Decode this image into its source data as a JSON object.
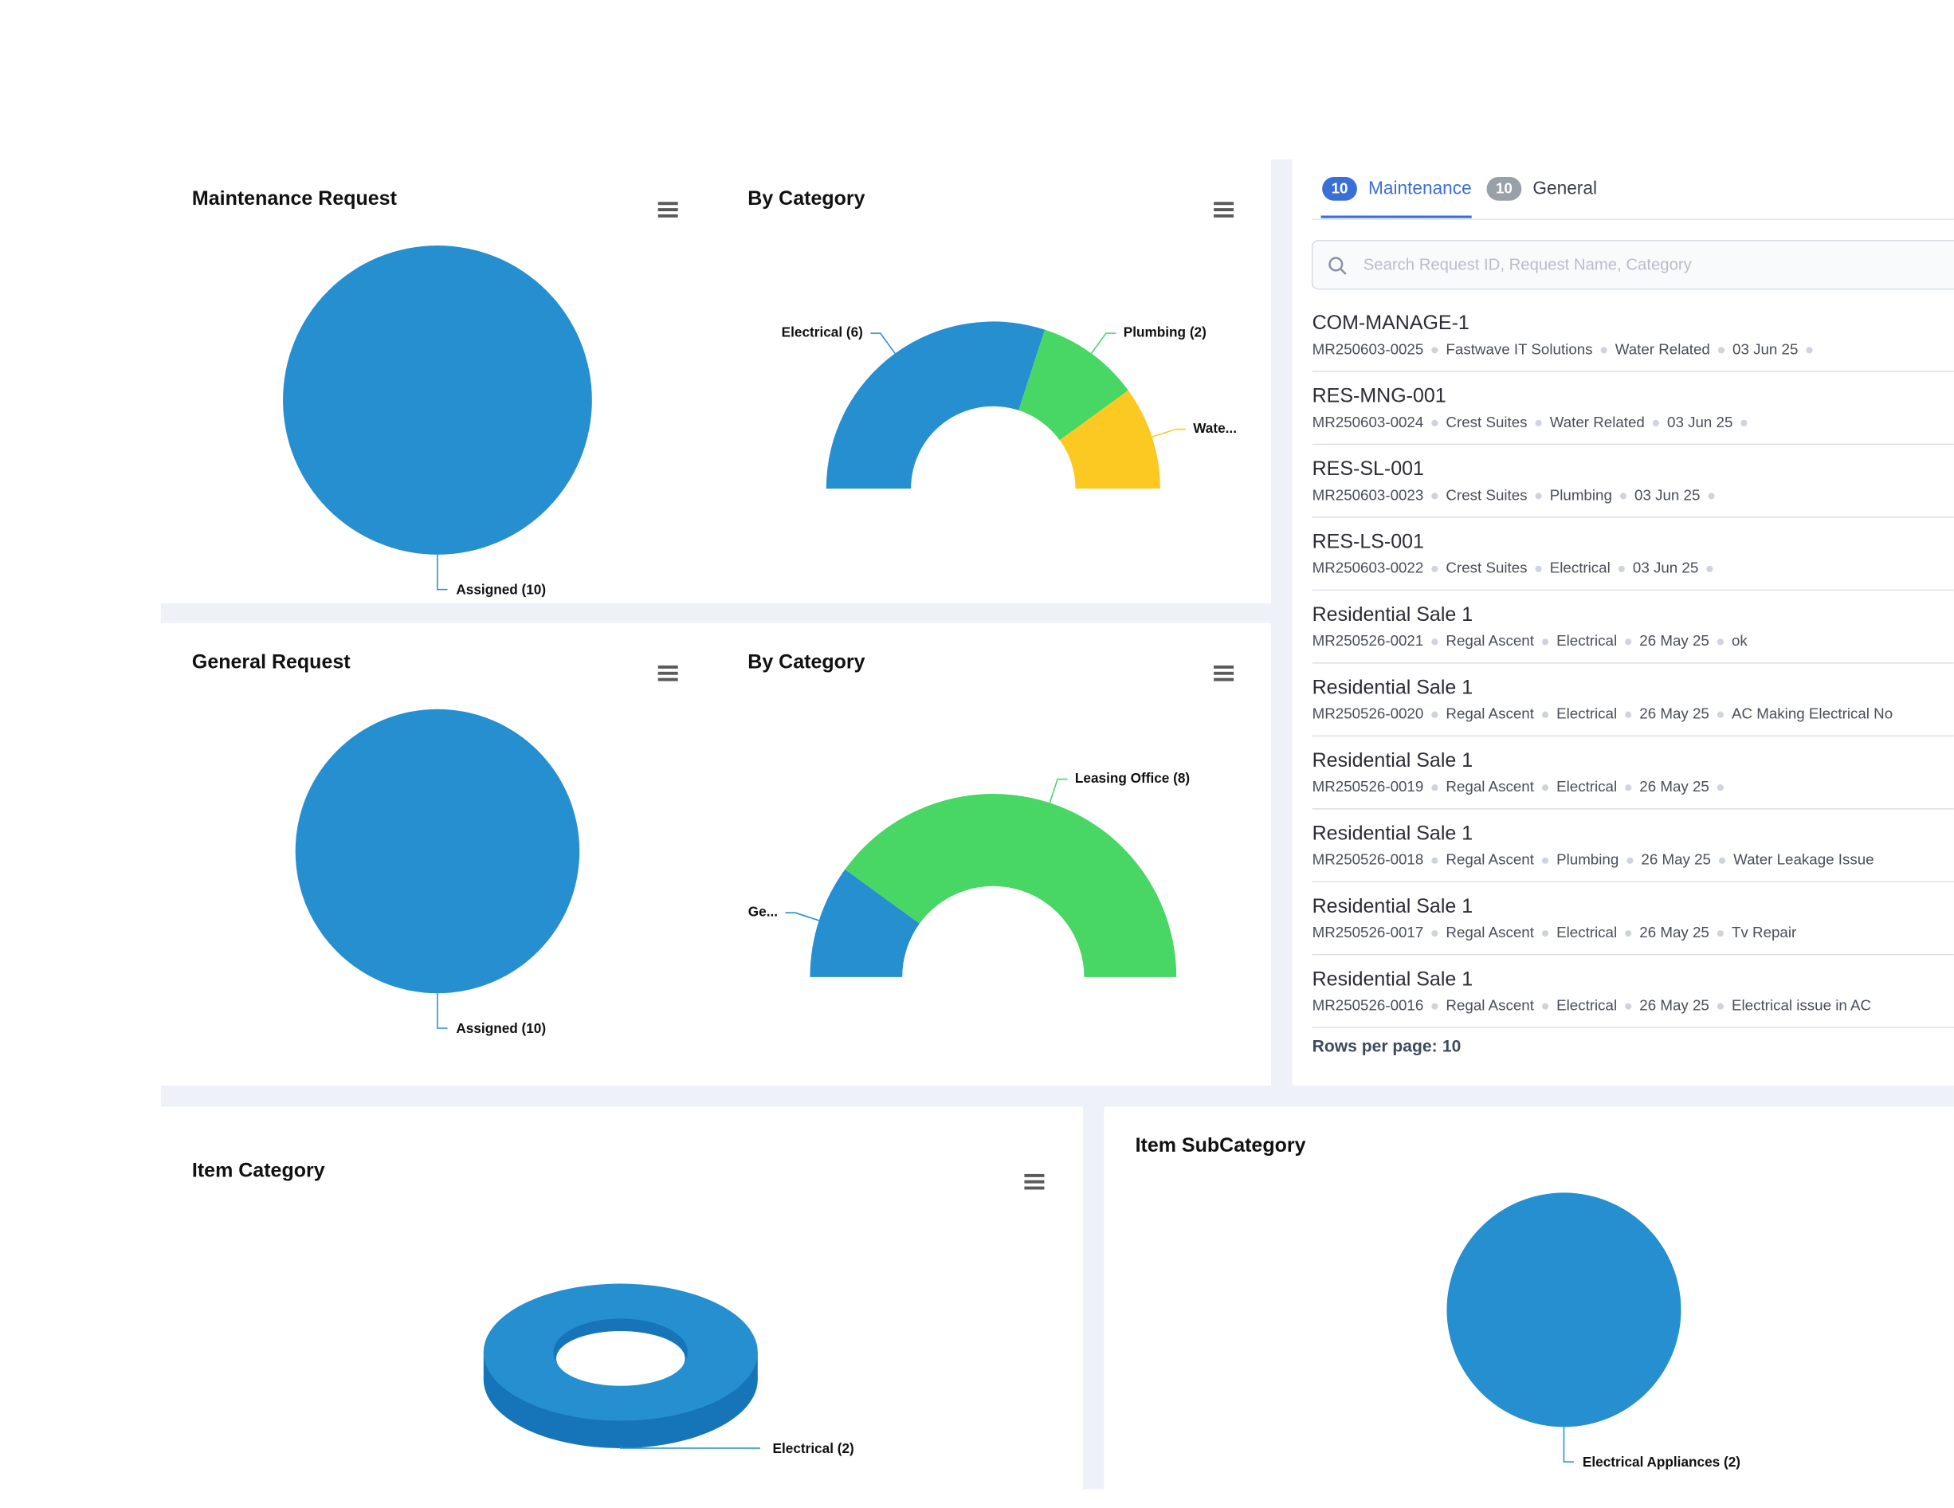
{
  "chart_data": [
    {
      "type": "pie",
      "title": "Maintenance Request",
      "values": [
        10
      ],
      "value_labels": [
        "Assigned (10)"
      ],
      "colors": [
        "#268fd0"
      ]
    },
    {
      "type": "semi_donut",
      "title": "By Category",
      "values": [
        6,
        2,
        2
      ],
      "value_labels": [
        "Electrical (6)",
        "Plumbing (2)",
        "Wate..."
      ],
      "colors": [
        "#268fd0",
        "#48d664",
        "#fcc923"
      ]
    },
    {
      "type": "pie",
      "title": "General Request",
      "values": [
        10
      ],
      "value_labels": [
        "Assigned (10)"
      ],
      "colors": [
        "#268fd0"
      ]
    },
    {
      "type": "semi_donut",
      "title": "By Category",
      "values": [
        2,
        8
      ],
      "value_labels": [
        "Ge...",
        "Leasing Office (8)"
      ],
      "colors": [
        "#268fd0",
        "#48d664"
      ]
    },
    {
      "type": "donut3d",
      "title": "Item Category",
      "values": [
        2
      ],
      "value_labels": [
        "Electrical (2)"
      ],
      "colors": [
        "#268fd0"
      ]
    },
    {
      "type": "pie",
      "title": "Item SubCategory",
      "values": [
        2
      ],
      "value_labels": [
        "Electrical Appliances (2)"
      ],
      "colors": [
        "#268fd0"
      ]
    }
  ],
  "requests": {
    "tabs": [
      {
        "count": 10,
        "label": "Maintenance"
      },
      {
        "count": 10,
        "label": "General"
      }
    ],
    "search_placeholder": "Search Request ID, Request Name, Category",
    "rows": [
      {
        "title": "COM-MANAGE-1",
        "fields": [
          "MR250603-0025",
          "Fastwave IT Solutions",
          "Water Related",
          "03 Jun 25"
        ]
      },
      {
        "title": "RES-MNG-001",
        "fields": [
          "MR250603-0024",
          "Crest Suites",
          "Water Related",
          "03 Jun 25"
        ]
      },
      {
        "title": "RES-SL-001",
        "fields": [
          "MR250603-0023",
          "Crest Suites",
          "Plumbing",
          "03 Jun 25"
        ]
      },
      {
        "title": "RES-LS-001",
        "fields": [
          "MR250603-0022",
          "Crest Suites",
          "Electrical",
          "03 Jun 25"
        ]
      },
      {
        "title": "Residential Sale 1",
        "fields": [
          "MR250526-0021",
          "Regal Ascent",
          "Electrical",
          "26 May 25"
        ],
        "note": "ok"
      },
      {
        "title": "Residential Sale 1",
        "fields": [
          "MR250526-0020",
          "Regal Ascent",
          "Electrical",
          "26 May 25"
        ],
        "note": "AC Making Electrical No"
      },
      {
        "title": "Residential Sale 1",
        "fields": [
          "MR250526-0019",
          "Regal Ascent",
          "Electrical",
          "26 May 25"
        ]
      },
      {
        "title": "Residential Sale 1",
        "fields": [
          "MR250526-0018",
          "Regal Ascent",
          "Plumbing",
          "26 May 25"
        ],
        "note": "Water Leakage Issue"
      },
      {
        "title": "Residential Sale 1",
        "fields": [
          "MR250526-0017",
          "Regal Ascent",
          "Electrical",
          "26 May 25"
        ],
        "note": "Tv Repair"
      },
      {
        "title": "Residential Sale 1",
        "fields": [
          "MR250526-0016",
          "Regal Ascent",
          "Electrical",
          "26 May 25"
        ],
        "note": "Electrical issue in AC"
      }
    ],
    "rows_per_page": {
      "label": "Rows per page:",
      "value": 10
    }
  }
}
